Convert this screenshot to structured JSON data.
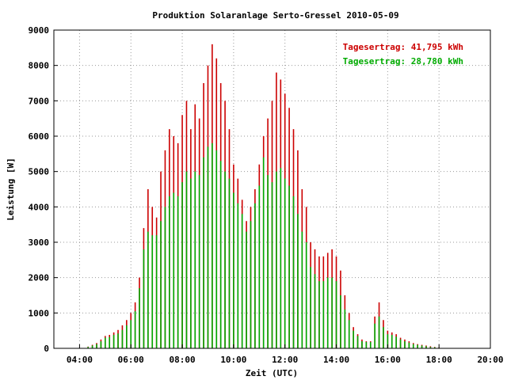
{
  "chart_data": {
    "type": "bar",
    "title": "Produktion Solaranlage Serto-Gressel 2010-05-09",
    "xlabel": "Zeit (UTC)",
    "ylabel": "Leistung [W]",
    "xlim": [
      "03:00",
      "20:00"
    ],
    "ylim": [
      0,
      9000
    ],
    "x_ticks": [
      "04:00",
      "06:00",
      "08:00",
      "10:00",
      "12:00",
      "14:00",
      "16:00",
      "18:00",
      "20:00"
    ],
    "y_ticks": [
      "0",
      "1000",
      "2000",
      "3000",
      "4000",
      "5000",
      "6000",
      "7000",
      "8000",
      "9000"
    ],
    "grid": true,
    "colors": {
      "series_red": "#cc0000",
      "series_green": "#00aa00"
    },
    "annotations": [
      {
        "text": "Tagesertrag: 41,795 kWh",
        "color": "#cc0000",
        "position": "top-right"
      },
      {
        "text": "Tagesertrag: 28,780 kWh",
        "color": "#00aa00",
        "position": "top-right"
      }
    ],
    "x": [
      "04:20",
      "04:30",
      "04:40",
      "04:50",
      "05:00",
      "05:10",
      "05:20",
      "05:30",
      "05:40",
      "05:50",
      "06:00",
      "06:10",
      "06:20",
      "06:30",
      "06:40",
      "06:50",
      "07:00",
      "07:10",
      "07:20",
      "07:30",
      "07:40",
      "07:50",
      "08:00",
      "08:10",
      "08:20",
      "08:30",
      "08:40",
      "08:50",
      "09:00",
      "09:10",
      "09:20",
      "09:30",
      "09:40",
      "09:50",
      "10:00",
      "10:10",
      "10:20",
      "10:30",
      "10:40",
      "10:50",
      "11:00",
      "11:10",
      "11:20",
      "11:30",
      "11:40",
      "11:50",
      "12:00",
      "12:10",
      "12:20",
      "12:30",
      "12:40",
      "12:50",
      "13:00",
      "13:10",
      "13:20",
      "13:30",
      "13:40",
      "13:50",
      "14:00",
      "14:10",
      "14:20",
      "14:30",
      "14:40",
      "14:50",
      "15:00",
      "15:10",
      "15:20",
      "15:30",
      "15:40",
      "15:50",
      "16:00",
      "16:10",
      "16:20",
      "16:30",
      "16:40",
      "16:50",
      "17:00",
      "17:10",
      "17:20",
      "17:30",
      "17:40",
      "17:50",
      "18:00"
    ],
    "series": [
      {
        "values": [
          50,
          100,
          150,
          250,
          350,
          380,
          450,
          520,
          650,
          800,
          1000,
          1300,
          2000,
          3400,
          4500,
          4000,
          3700,
          5000,
          5600,
          6200,
          6000,
          5800,
          6600,
          7000,
          6200,
          6900,
          6500,
          7500,
          8000,
          8600,
          8200,
          7500,
          7000,
          6200,
          5200,
          4800,
          4200,
          3600,
          4000,
          4500,
          5200,
          6000,
          6500,
          7000,
          7800,
          7600,
          7200,
          6800,
          6200,
          5600,
          4500,
          4000,
          3000,
          2800,
          2600,
          2600,
          2700,
          2800,
          2600,
          2200,
          1500,
          1000,
          600,
          400,
          250,
          200,
          200,
          900,
          1300,
          800,
          500,
          450,
          400,
          300,
          250,
          200,
          150,
          120,
          100,
          80,
          60,
          40,
          20
        ]
      },
      {
        "values": [
          40,
          80,
          120,
          200,
          300,
          320,
          380,
          420,
          520,
          650,
          800,
          1050,
          1700,
          2800,
          3300,
          3200,
          3200,
          3600,
          4000,
          4300,
          4400,
          4300,
          4700,
          5000,
          4800,
          5000,
          4900,
          5400,
          5700,
          5800,
          5600,
          5300,
          5000,
          4800,
          4400,
          4100,
          3800,
          3300,
          3600,
          4100,
          4600,
          5400,
          4900,
          4700,
          5000,
          5100,
          4800,
          4600,
          4300,
          3800,
          3300,
          3000,
          2300,
          2100,
          1900,
          1900,
          2000,
          2000,
          1900,
          1500,
          1100,
          800,
          500,
          350,
          200,
          180,
          180,
          700,
          900,
          600,
          400,
          380,
          330,
          250,
          200,
          160,
          120,
          100,
          80,
          60,
          40,
          30,
          15
        ]
      }
    ]
  }
}
